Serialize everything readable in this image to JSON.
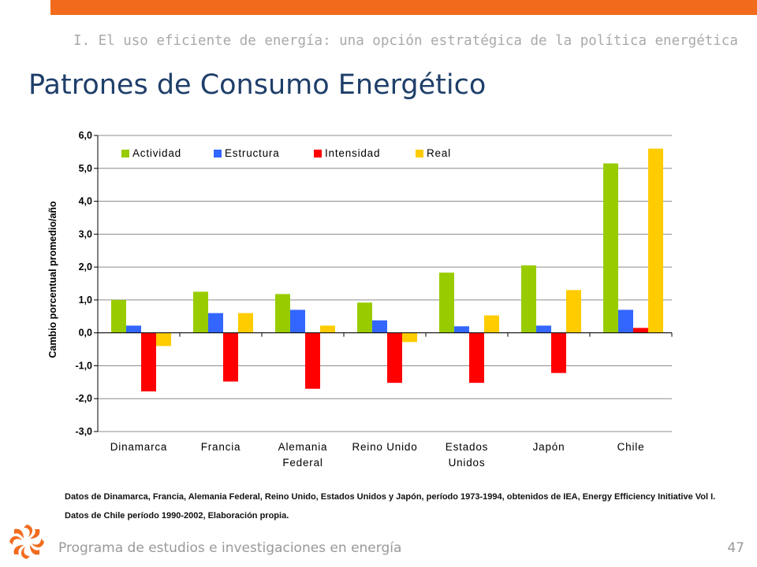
{
  "header": {
    "subtitle": "I. El uso eficiente de energía: una opción estratégica de la política energética",
    "title": "Patrones de Consumo Energético"
  },
  "chart_data": {
    "type": "bar",
    "ylabel": "Cambio porcentual promedio/año",
    "xlabel": "",
    "ylim": [
      -3.0,
      6.0
    ],
    "yticks": [
      "6,0",
      "5,0",
      "4,0",
      "3,0",
      "2,0",
      "1,0",
      "0,0",
      "-1,0",
      "-2,0",
      "-3,0"
    ],
    "ytick_values": [
      6,
      5,
      4,
      3,
      2,
      1,
      0,
      -1,
      -2,
      -3
    ],
    "grid": true,
    "legend_position": "top-left",
    "categories": [
      [
        "Dinamarca"
      ],
      [
        "Francia"
      ],
      [
        "Alemania",
        "Federal"
      ],
      [
        "Reino Unido"
      ],
      [
        "Estados",
        "Unidos"
      ],
      [
        "Japón"
      ],
      [
        "Chile"
      ]
    ],
    "series": [
      {
        "name": "Actividad",
        "color": "#99cc00",
        "values": [
          1.0,
          1.25,
          1.18,
          0.92,
          1.83,
          2.05,
          5.15
        ]
      },
      {
        "name": "Estructura",
        "color": "#3366ff",
        "values": [
          0.22,
          0.6,
          0.7,
          0.38,
          0.2,
          0.22,
          0.7
        ]
      },
      {
        "name": "Intensidad",
        "color": "#ff0000",
        "values": [
          -1.78,
          -1.48,
          -1.7,
          -1.52,
          -1.52,
          -1.22,
          0.15
        ]
      },
      {
        "name": "Real",
        "color": "#ffcc00",
        "values": [
          -0.4,
          0.6,
          0.22,
          -0.28,
          0.53,
          1.3,
          5.6
        ]
      }
    ]
  },
  "notes": {
    "line1": "Datos de Dinamarca, Francia, Alemania Federal, Reino Unido, Estados Unidos y Japón, período 1973-1994, obtenidos de IEA, Energy Efficiency Initiative Vol I.",
    "line2": "Datos de Chile período 1990-2002,  Elaboración propia."
  },
  "footer": {
    "text": "Programa de estudios e investigaciones en energía",
    "page_number": "47",
    "logo_icon": "swirl-logo-icon",
    "accent_color": "#f26b1d"
  }
}
